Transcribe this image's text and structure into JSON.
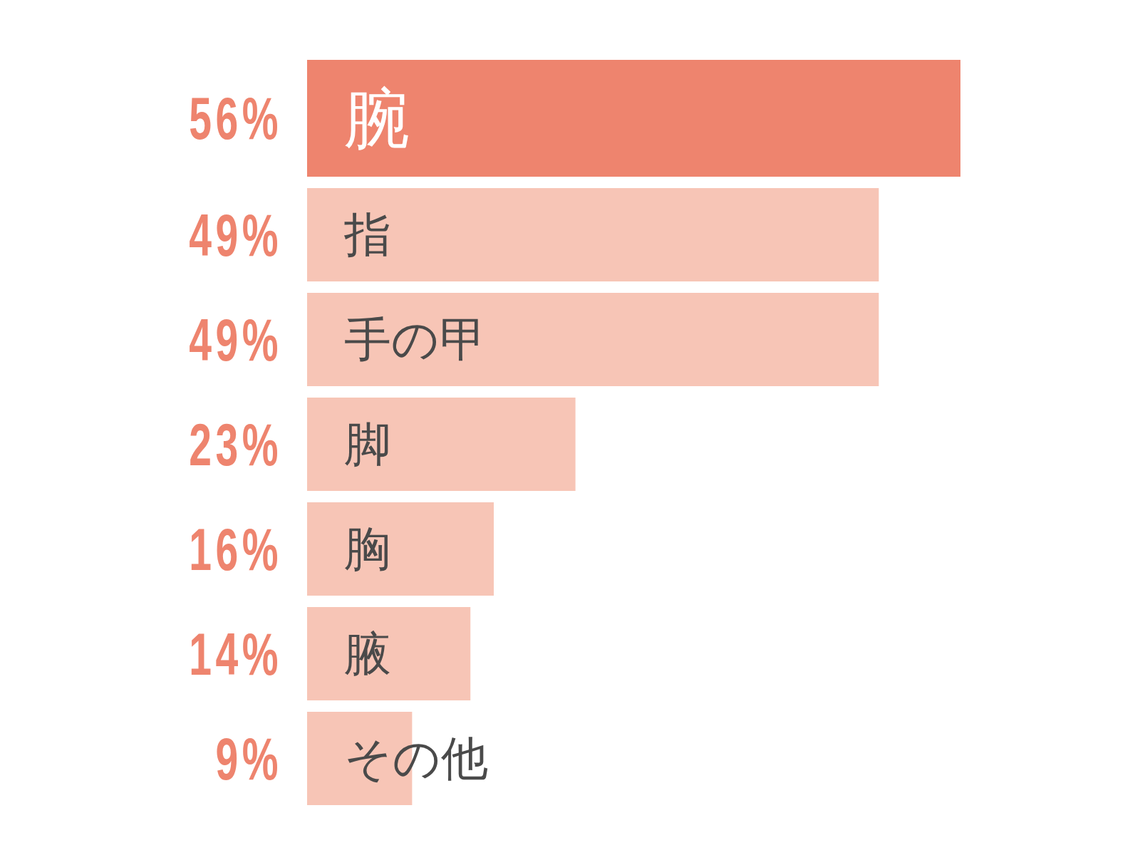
{
  "chart_data": {
    "type": "bar",
    "orientation": "horizontal",
    "categories": [
      "腕",
      "指",
      "手の甲",
      "脚",
      "胸",
      "腋",
      "その他"
    ],
    "values": [
      56,
      49,
      49,
      23,
      16,
      14,
      9
    ],
    "colors": [
      "#ee846e",
      "#f7c5b6",
      "#f7c5b6",
      "#f7c5b6",
      "#f7c5b6",
      "#f7c5b6",
      "#f7c5b6"
    ],
    "value_labels": [
      "56%",
      "49%",
      "49%",
      "23%",
      "16%",
      "14%",
      "9%"
    ]
  }
}
